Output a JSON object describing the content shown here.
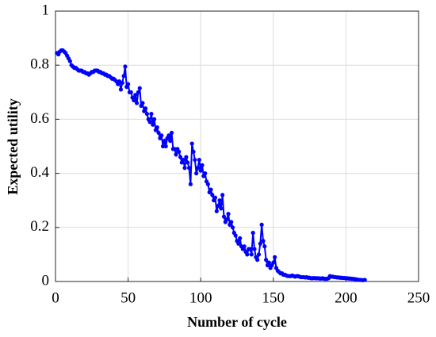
{
  "chart_data": {
    "type": "line",
    "xlabel": "Number of cycle",
    "ylabel": "Expected utility",
    "x": [
      1,
      2,
      3,
      4,
      5,
      6,
      7,
      8,
      9,
      10,
      11,
      12,
      13,
      14,
      15,
      16,
      17,
      18,
      19,
      20,
      21,
      22,
      23,
      24,
      25,
      26,
      27,
      28,
      29,
      30,
      31,
      32,
      33,
      34,
      35,
      36,
      37,
      38,
      39,
      40,
      41,
      42,
      43,
      44,
      45,
      46,
      47,
      48,
      49,
      50,
      51,
      52,
      53,
      54,
      55,
      56,
      57,
      58,
      59,
      60,
      61,
      62,
      63,
      64,
      65,
      66,
      67,
      68,
      69,
      70,
      71,
      72,
      73,
      74,
      75,
      76,
      77,
      78,
      79,
      80,
      81,
      82,
      83,
      84,
      85,
      86,
      87,
      88,
      89,
      90,
      91,
      92,
      93,
      94,
      95,
      96,
      97,
      98,
      99,
      100,
      101,
      102,
      103,
      104,
      105,
      106,
      107,
      108,
      109,
      110,
      111,
      112,
      113,
      114,
      115,
      116,
      117,
      118,
      119,
      120,
      121,
      122,
      123,
      124,
      125,
      126,
      127,
      128,
      129,
      130,
      131,
      132,
      133,
      134,
      135,
      136,
      137,
      138,
      139,
      140,
      141,
      142,
      143,
      144,
      145,
      146,
      147,
      148,
      149,
      150,
      151,
      152,
      153,
      154,
      155,
      156,
      157,
      158,
      159,
      160,
      161,
      162,
      163,
      164,
      165,
      166,
      167,
      168,
      169,
      170,
      171,
      172,
      173,
      174,
      175,
      176,
      177,
      178,
      179,
      180,
      181,
      182,
      183,
      184,
      185,
      186,
      187,
      188,
      189,
      190,
      191,
      192,
      193,
      194,
      195,
      196,
      197,
      198,
      199,
      200,
      201,
      202,
      203,
      204,
      205,
      206,
      207,
      208,
      209,
      210,
      211,
      212,
      213
    ],
    "series": [
      {
        "color": "#0000ff",
        "values": [
          0.845,
          0.84,
          0.85,
          0.855,
          0.855,
          0.85,
          0.845,
          0.835,
          0.825,
          0.815,
          0.8,
          0.795,
          0.79,
          0.79,
          0.785,
          0.78,
          0.78,
          0.78,
          0.775,
          0.775,
          0.77,
          0.77,
          0.765,
          0.77,
          0.775,
          0.775,
          0.78,
          0.78,
          0.78,
          0.775,
          0.775,
          0.77,
          0.77,
          0.765,
          0.765,
          0.76,
          0.76,
          0.755,
          0.75,
          0.75,
          0.745,
          0.74,
          0.73,
          0.74,
          0.71,
          0.735,
          0.76,
          0.795,
          0.72,
          0.73,
          0.7,
          0.7,
          0.68,
          0.67,
          0.69,
          0.66,
          0.7,
          0.715,
          0.65,
          0.66,
          0.63,
          0.64,
          0.62,
          0.6,
          0.59,
          0.62,
          0.58,
          0.6,
          0.56,
          0.57,
          0.55,
          0.53,
          0.54,
          0.5,
          0.52,
          0.5,
          0.53,
          0.54,
          0.52,
          0.55,
          0.49,
          0.49,
          0.47,
          0.49,
          0.48,
          0.46,
          0.44,
          0.45,
          0.42,
          0.46,
          0.44,
          0.42,
          0.36,
          0.51,
          0.48,
          0.45,
          0.4,
          0.42,
          0.45,
          0.41,
          0.43,
          0.39,
          0.4,
          0.37,
          0.36,
          0.33,
          0.34,
          0.32,
          0.3,
          0.31,
          0.26,
          0.28,
          0.3,
          0.27,
          0.32,
          0.24,
          0.22,
          0.23,
          0.25,
          0.21,
          0.22,
          0.2,
          0.18,
          0.17,
          0.15,
          0.14,
          0.16,
          0.13,
          0.12,
          0.13,
          0.11,
          0.1,
          0.12,
          0.12,
          0.1,
          0.18,
          0.12,
          0.09,
          0.08,
          0.1,
          0.14,
          0.21,
          0.15,
          0.13,
          0.08,
          0.06,
          0.07,
          0.05,
          0.06,
          0.07,
          0.09,
          0.05,
          0.04,
          0.035,
          0.03,
          0.03,
          0.025,
          0.025,
          0.022,
          0.02,
          0.02,
          0.02,
          0.022,
          0.02,
          0.018,
          0.02,
          0.02,
          0.018,
          0.016,
          0.016,
          0.016,
          0.015,
          0.016,
          0.014,
          0.014,
          0.012,
          0.012,
          0.013,
          0.012,
          0.012,
          0.012,
          0.011,
          0.011,
          0.012,
          0.01,
          0.01,
          0.01,
          0.012,
          0.02,
          0.018,
          0.018,
          0.016,
          0.016,
          0.015,
          0.015,
          0.014,
          0.014,
          0.013,
          0.013,
          0.012,
          0.012,
          0.011,
          0.011,
          0.01,
          0.01,
          0.009,
          0.008,
          0.007,
          0.006,
          0.006,
          0.005,
          0.005,
          0.006
        ]
      }
    ],
    "xlim": [
      0,
      250
    ],
    "xticks": [
      0,
      50,
      100,
      150,
      200,
      250
    ],
    "ylim": [
      0,
      1
    ],
    "yticks": [
      0,
      0.2,
      0.4,
      0.6,
      0.8,
      1
    ],
    "grid": true
  }
}
